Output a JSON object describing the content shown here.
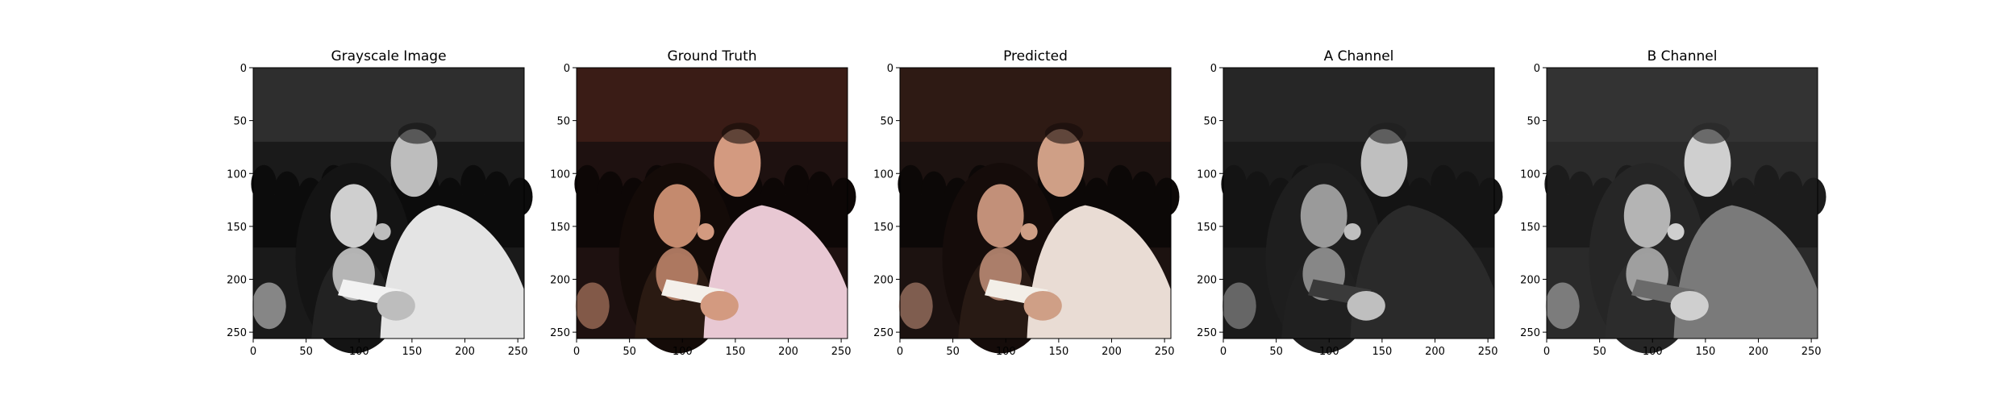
{
  "figure": {
    "panels": [
      {
        "id": "grayscale",
        "title": "Grayscale Image",
        "tint": "gray"
      },
      {
        "id": "ground-truth",
        "title": "Ground Truth",
        "tint": "gt"
      },
      {
        "id": "predicted",
        "title": "Predicted",
        "tint": "pred"
      },
      {
        "id": "a-channel",
        "title": "A Channel",
        "tint": "achan"
      },
      {
        "id": "b-channel",
        "title": "B Channel",
        "tint": "bchan"
      }
    ],
    "axis": {
      "x_ticks": [
        "0",
        "50",
        "100",
        "150",
        "200",
        "250"
      ],
      "y_ticks": [
        "0",
        "50",
        "100",
        "150",
        "200",
        "250"
      ],
      "x_range": [
        0,
        256
      ],
      "y_range": [
        0,
        256
      ]
    }
  }
}
